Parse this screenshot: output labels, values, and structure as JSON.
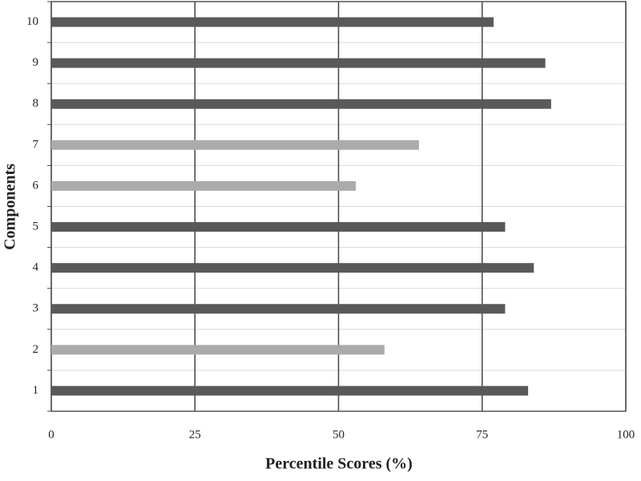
{
  "chart_data": {
    "type": "bar",
    "orientation": "horizontal",
    "xlabel": "Percentile Scores (%)",
    "ylabel": "Components",
    "categories": [
      "1",
      "2",
      "3",
      "4",
      "5",
      "6",
      "7",
      "8",
      "9",
      "10"
    ],
    "values": [
      83,
      58,
      79,
      84,
      79,
      53,
      64,
      87,
      86,
      77
    ],
    "colors": [
      "#595959",
      "#ababab",
      "#595959",
      "#595959",
      "#595959",
      "#ababab",
      "#ababab",
      "#595959",
      "#595959",
      "#595959"
    ],
    "xlim": [
      0,
      100
    ],
    "xticks": [
      0,
      25,
      50,
      75,
      100
    ],
    "grid": true
  }
}
